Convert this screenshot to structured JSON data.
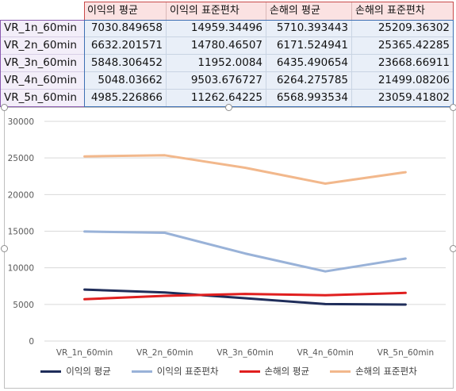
{
  "table": {
    "headers": [
      "이익의 평균",
      "이익의 표준편차",
      "손해의 평균",
      "손해의 표준편차"
    ],
    "rows": [
      {
        "label": "VR_1n_60min",
        "values": [
          "7030.849658",
          "14959.34496",
          "5710.393443",
          "25209.36302"
        ]
      },
      {
        "label": "VR_2n_60min",
        "values": [
          "6632.201571",
          "14780.46507",
          "6171.524941",
          "25365.42285"
        ]
      },
      {
        "label": "VR_3n_60min",
        "values": [
          "5848.306452",
          "11952.0084",
          "6435.490654",
          "23668.66911"
        ]
      },
      {
        "label": "VR_4n_60min",
        "values": [
          "5048.03662",
          "9503.676727",
          "6264.275785",
          "21499.08206"
        ]
      },
      {
        "label": "VR_5n_60min",
        "values": [
          "4985.226866",
          "11262.64225",
          "6568.993534",
          "23059.41802"
        ]
      }
    ]
  },
  "chart_data": {
    "type": "line",
    "categories": [
      "VR_1n_60min",
      "VR_2n_60min",
      "VR_3n_60min",
      "VR_4n_60min",
      "VR_5n_60min"
    ],
    "ylim": [
      0,
      30000
    ],
    "yticks": [
      "0",
      "5000",
      "10000",
      "15000",
      "20000",
      "25000",
      "30000"
    ],
    "grid": true,
    "legend_position": "bottom",
    "series": [
      {
        "name": "이익의 평균",
        "color": "#1f2d5a",
        "values": [
          7030.849658,
          6632.201571,
          5848.306452,
          5048.03662,
          4985.226866
        ]
      },
      {
        "name": "이익의 표준편차",
        "color": "#99b2d8",
        "values": [
          14959.34496,
          14780.46507,
          11952.0084,
          9503.676727,
          11262.64225
        ]
      },
      {
        "name": "손해의 평균",
        "color": "#e01f1f",
        "values": [
          5710.393443,
          6171.524941,
          6435.490654,
          6264.275785,
          6568.993534
        ]
      },
      {
        "name": "손해의 표준편차",
        "color": "#f2b88c",
        "values": [
          25209.36302,
          25365.42285,
          23668.66911,
          21499.08206,
          23059.41802
        ]
      }
    ]
  }
}
